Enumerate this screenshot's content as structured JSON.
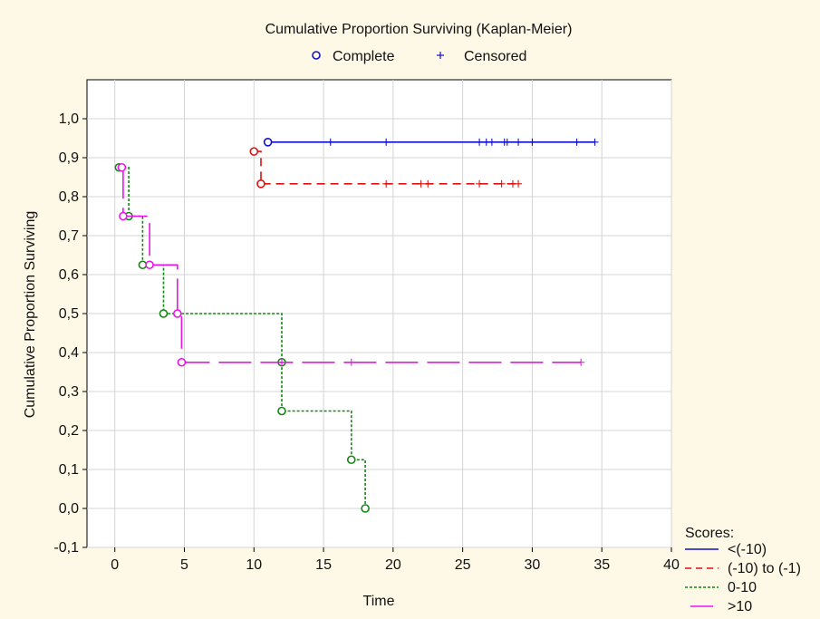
{
  "chart_data": {
    "type": "line",
    "title": "Cumulative Proportion Surviving (Kaplan-Meier)",
    "xlabel": "Time",
    "ylabel": "Cumulative Proportion Surviving",
    "xlim": [
      -2,
      40
    ],
    "ylim": [
      -0.1,
      1.1
    ],
    "xticks": [
      "0",
      "5",
      "10",
      "15",
      "20",
      "25",
      "30",
      "35",
      "40"
    ],
    "xtick_values": [
      0,
      5,
      10,
      15,
      20,
      25,
      30,
      35,
      40
    ],
    "yticks": [
      "-0,1",
      "0,0",
      "0,1",
      "0,2",
      "0,3",
      "0,4",
      "0,5",
      "0,6",
      "0,7",
      "0,8",
      "0,9",
      "1,0"
    ],
    "ytick_values": [
      -0.1,
      0.0,
      0.1,
      0.2,
      0.3,
      0.4,
      0.5,
      0.6,
      0.7,
      0.8,
      0.9,
      1.0
    ],
    "grid": true,
    "marker_legend": {
      "complete_label": "Complete",
      "censored_label": "Censored"
    },
    "legend": {
      "title": "Scores:",
      "placement": "bottom-right"
    },
    "series": [
      {
        "name": "<(-10)",
        "color": "#1111cc",
        "dash": "solid",
        "start": [
          11,
          0.94
        ],
        "steps": [
          [
            34.5,
            0.94
          ]
        ],
        "complete": [
          [
            11,
            0.94
          ]
        ],
        "censored": [
          [
            15.5,
            0.94
          ],
          [
            19.5,
            0.94
          ],
          [
            26.2,
            0.94
          ],
          [
            26.7,
            0.94
          ],
          [
            27.1,
            0.94
          ],
          [
            28.0,
            0.94
          ],
          [
            28.2,
            0.94
          ],
          [
            29.0,
            0.94
          ],
          [
            30.0,
            0.94
          ],
          [
            33.2,
            0.94
          ],
          [
            34.5,
            0.94
          ]
        ]
      },
      {
        "name": "(-10) to (-1)",
        "color": "#dd1111",
        "dash": "dashed",
        "start": [
          10,
          0.916
        ],
        "steps": [
          [
            10.5,
            0.916
          ],
          [
            10.5,
            0.833
          ],
          [
            29.0,
            0.833
          ]
        ],
        "complete": [
          [
            10,
            0.916
          ],
          [
            10.5,
            0.833
          ]
        ],
        "censored": [
          [
            19.5,
            0.833
          ],
          [
            22.0,
            0.833
          ],
          [
            22.5,
            0.833
          ],
          [
            26.2,
            0.833
          ],
          [
            27.8,
            0.833
          ],
          [
            28.6,
            0.833
          ],
          [
            29.0,
            0.833
          ]
        ]
      },
      {
        "name": "0-10",
        "color": "#118811",
        "dash": "dotted",
        "start": [
          0.3,
          0.875
        ],
        "steps": [
          [
            1.0,
            0.875
          ],
          [
            1.0,
            0.75
          ],
          [
            2.0,
            0.75
          ],
          [
            2.0,
            0.625
          ],
          [
            3.5,
            0.625
          ],
          [
            3.5,
            0.5
          ],
          [
            12.0,
            0.5
          ],
          [
            12.0,
            0.25
          ],
          [
            17.0,
            0.25
          ],
          [
            17.0,
            0.125
          ],
          [
            18.0,
            0.125
          ],
          [
            18.0,
            0.0
          ]
        ],
        "complete": [
          [
            0.3,
            0.875
          ],
          [
            1.0,
            0.75
          ],
          [
            2.0,
            0.625
          ],
          [
            3.5,
            0.5
          ],
          [
            12.0,
            0.375
          ],
          [
            12.0,
            0.25
          ],
          [
            17.0,
            0.125
          ],
          [
            18.0,
            0.0
          ]
        ],
        "censored": []
      },
      {
        "name": ">10",
        "color": "#ee11ee",
        "dash": "longdash",
        "start": [
          0.5,
          0.875
        ],
        "steps": [
          [
            0.6,
            0.875
          ],
          [
            0.6,
            0.75
          ],
          [
            2.5,
            0.75
          ],
          [
            2.5,
            0.625
          ],
          [
            4.5,
            0.625
          ],
          [
            4.5,
            0.5
          ],
          [
            4.8,
            0.5
          ],
          [
            4.8,
            0.375
          ],
          [
            33.5,
            0.375
          ]
        ],
        "complete": [
          [
            0.5,
            0.875
          ],
          [
            0.6,
            0.75
          ],
          [
            2.5,
            0.625
          ],
          [
            4.5,
            0.5
          ],
          [
            4.8,
            0.375
          ]
        ],
        "censored": [
          [
            12.0,
            0.375
          ],
          [
            17.0,
            0.375
          ],
          [
            33.5,
            0.375
          ]
        ]
      }
    ]
  }
}
